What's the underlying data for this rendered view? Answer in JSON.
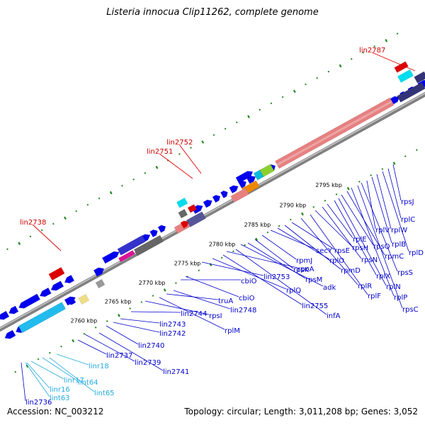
{
  "title": "Listeria innocua Clip11262, complete genome",
  "footer": {
    "accession": "Accession: NC_003212",
    "summary": "Topology: circular; Length: 3,011,208 bp; Genes: 3,052"
  },
  "colors": {
    "forward_gene": "#0000ee",
    "reverse_gene": "#0000ee",
    "rna_gene": "#00bbdd",
    "pseudo_gene": "#dd0000",
    "backbone": "#808080",
    "gene_label": "#0000cc",
    "rna_label": "#22aadd",
    "pseudo_label": "#cc0000",
    "tick_mark": "#228822"
  },
  "scale_ticks": [
    "2760 kbp",
    "2765 kbp",
    "2770 kbp",
    "2775 kbp",
    "2780 kbp",
    "2785 kbp",
    "2790 kbp",
    "2795 kbp"
  ],
  "pseudo_labels": [
    "lin2787",
    "lin2752",
    "lin2751",
    "lin2738"
  ],
  "gene_labels": [
    "lin2736",
    "linr16",
    "lint63",
    "linr17",
    "lint64",
    "lint65",
    "linr18",
    "lin2737",
    "lin2739",
    "lin2741",
    "lin2740",
    "lin2742",
    "lin2743",
    "lin2744",
    "rpsI",
    "rplM",
    "truA",
    "lin2748",
    "cbiO",
    "cbiO",
    "lin2753",
    "rplQ",
    "lin2755",
    "rpoA",
    "infA",
    "adk",
    "rpsM",
    "rpsK",
    "rpmJ",
    "secY",
    "rplO",
    "rpmD",
    "rpsE",
    "rplR",
    "rplF",
    "rpsH",
    "rpsN",
    "rplE",
    "rplX",
    "rplN",
    "rpsQ",
    "rpmC",
    "rplP",
    "rpsC",
    "rpsS",
    "rplV",
    "rplB",
    "rplW",
    "rplD",
    "rplC",
    "rpsJ"
  ],
  "rna_labels": [
    "linr16",
    "lint63",
    "linr17",
    "lint64",
    "lint65",
    "linr18"
  ]
}
